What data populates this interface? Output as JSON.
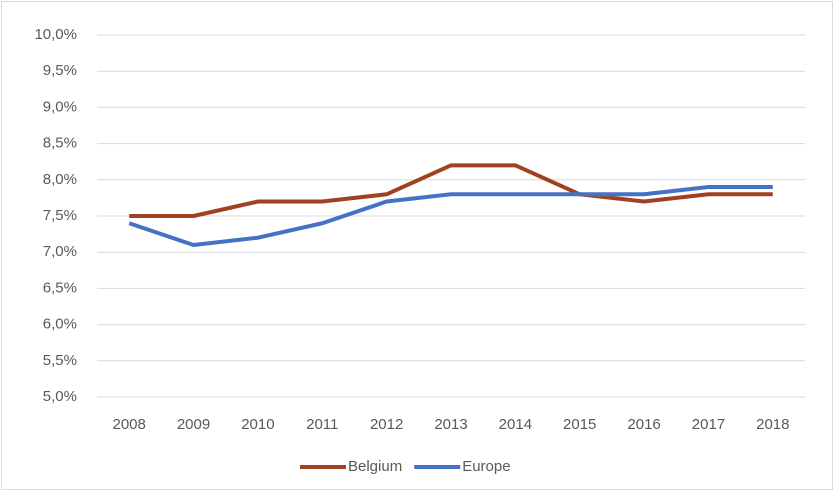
{
  "chart_data": {
    "type": "line",
    "categories": [
      "2008",
      "2009",
      "2010",
      "2011",
      "2012",
      "2013",
      "2014",
      "2015",
      "2016",
      "2017",
      "2018"
    ],
    "series": [
      {
        "name": "Belgium",
        "color": "#a0411f",
        "values": [
          7.5,
          7.5,
          7.7,
          7.7,
          7.8,
          8.2,
          8.2,
          7.8,
          7.7,
          7.8,
          7.8
        ]
      },
      {
        "name": "Europe",
        "color": "#4472c4",
        "values": [
          7.4,
          7.1,
          7.2,
          7.4,
          7.7,
          7.8,
          7.8,
          7.8,
          7.8,
          7.9,
          7.9
        ]
      }
    ],
    "ylim": [
      5,
      10
    ],
    "yticks": [
      {
        "value": 5,
        "label": "5,0%"
      },
      {
        "value": 5.5,
        "label": "5,5%"
      },
      {
        "value": 6,
        "label": "6,0%"
      },
      {
        "value": 6.5,
        "label": "6,5%"
      },
      {
        "value": 7,
        "label": "7,0%"
      },
      {
        "value": 7.5,
        "label": "7,5%"
      },
      {
        "value": 8,
        "label": "8,0%"
      },
      {
        "value": 8.5,
        "label": "8,5%"
      },
      {
        "value": 9,
        "label": "9,0%"
      },
      {
        "value": 9.5,
        "label": "9,5%"
      },
      {
        "value": 10,
        "label": "10,0%"
      }
    ],
    "grid": true,
    "legend": "bottom"
  }
}
